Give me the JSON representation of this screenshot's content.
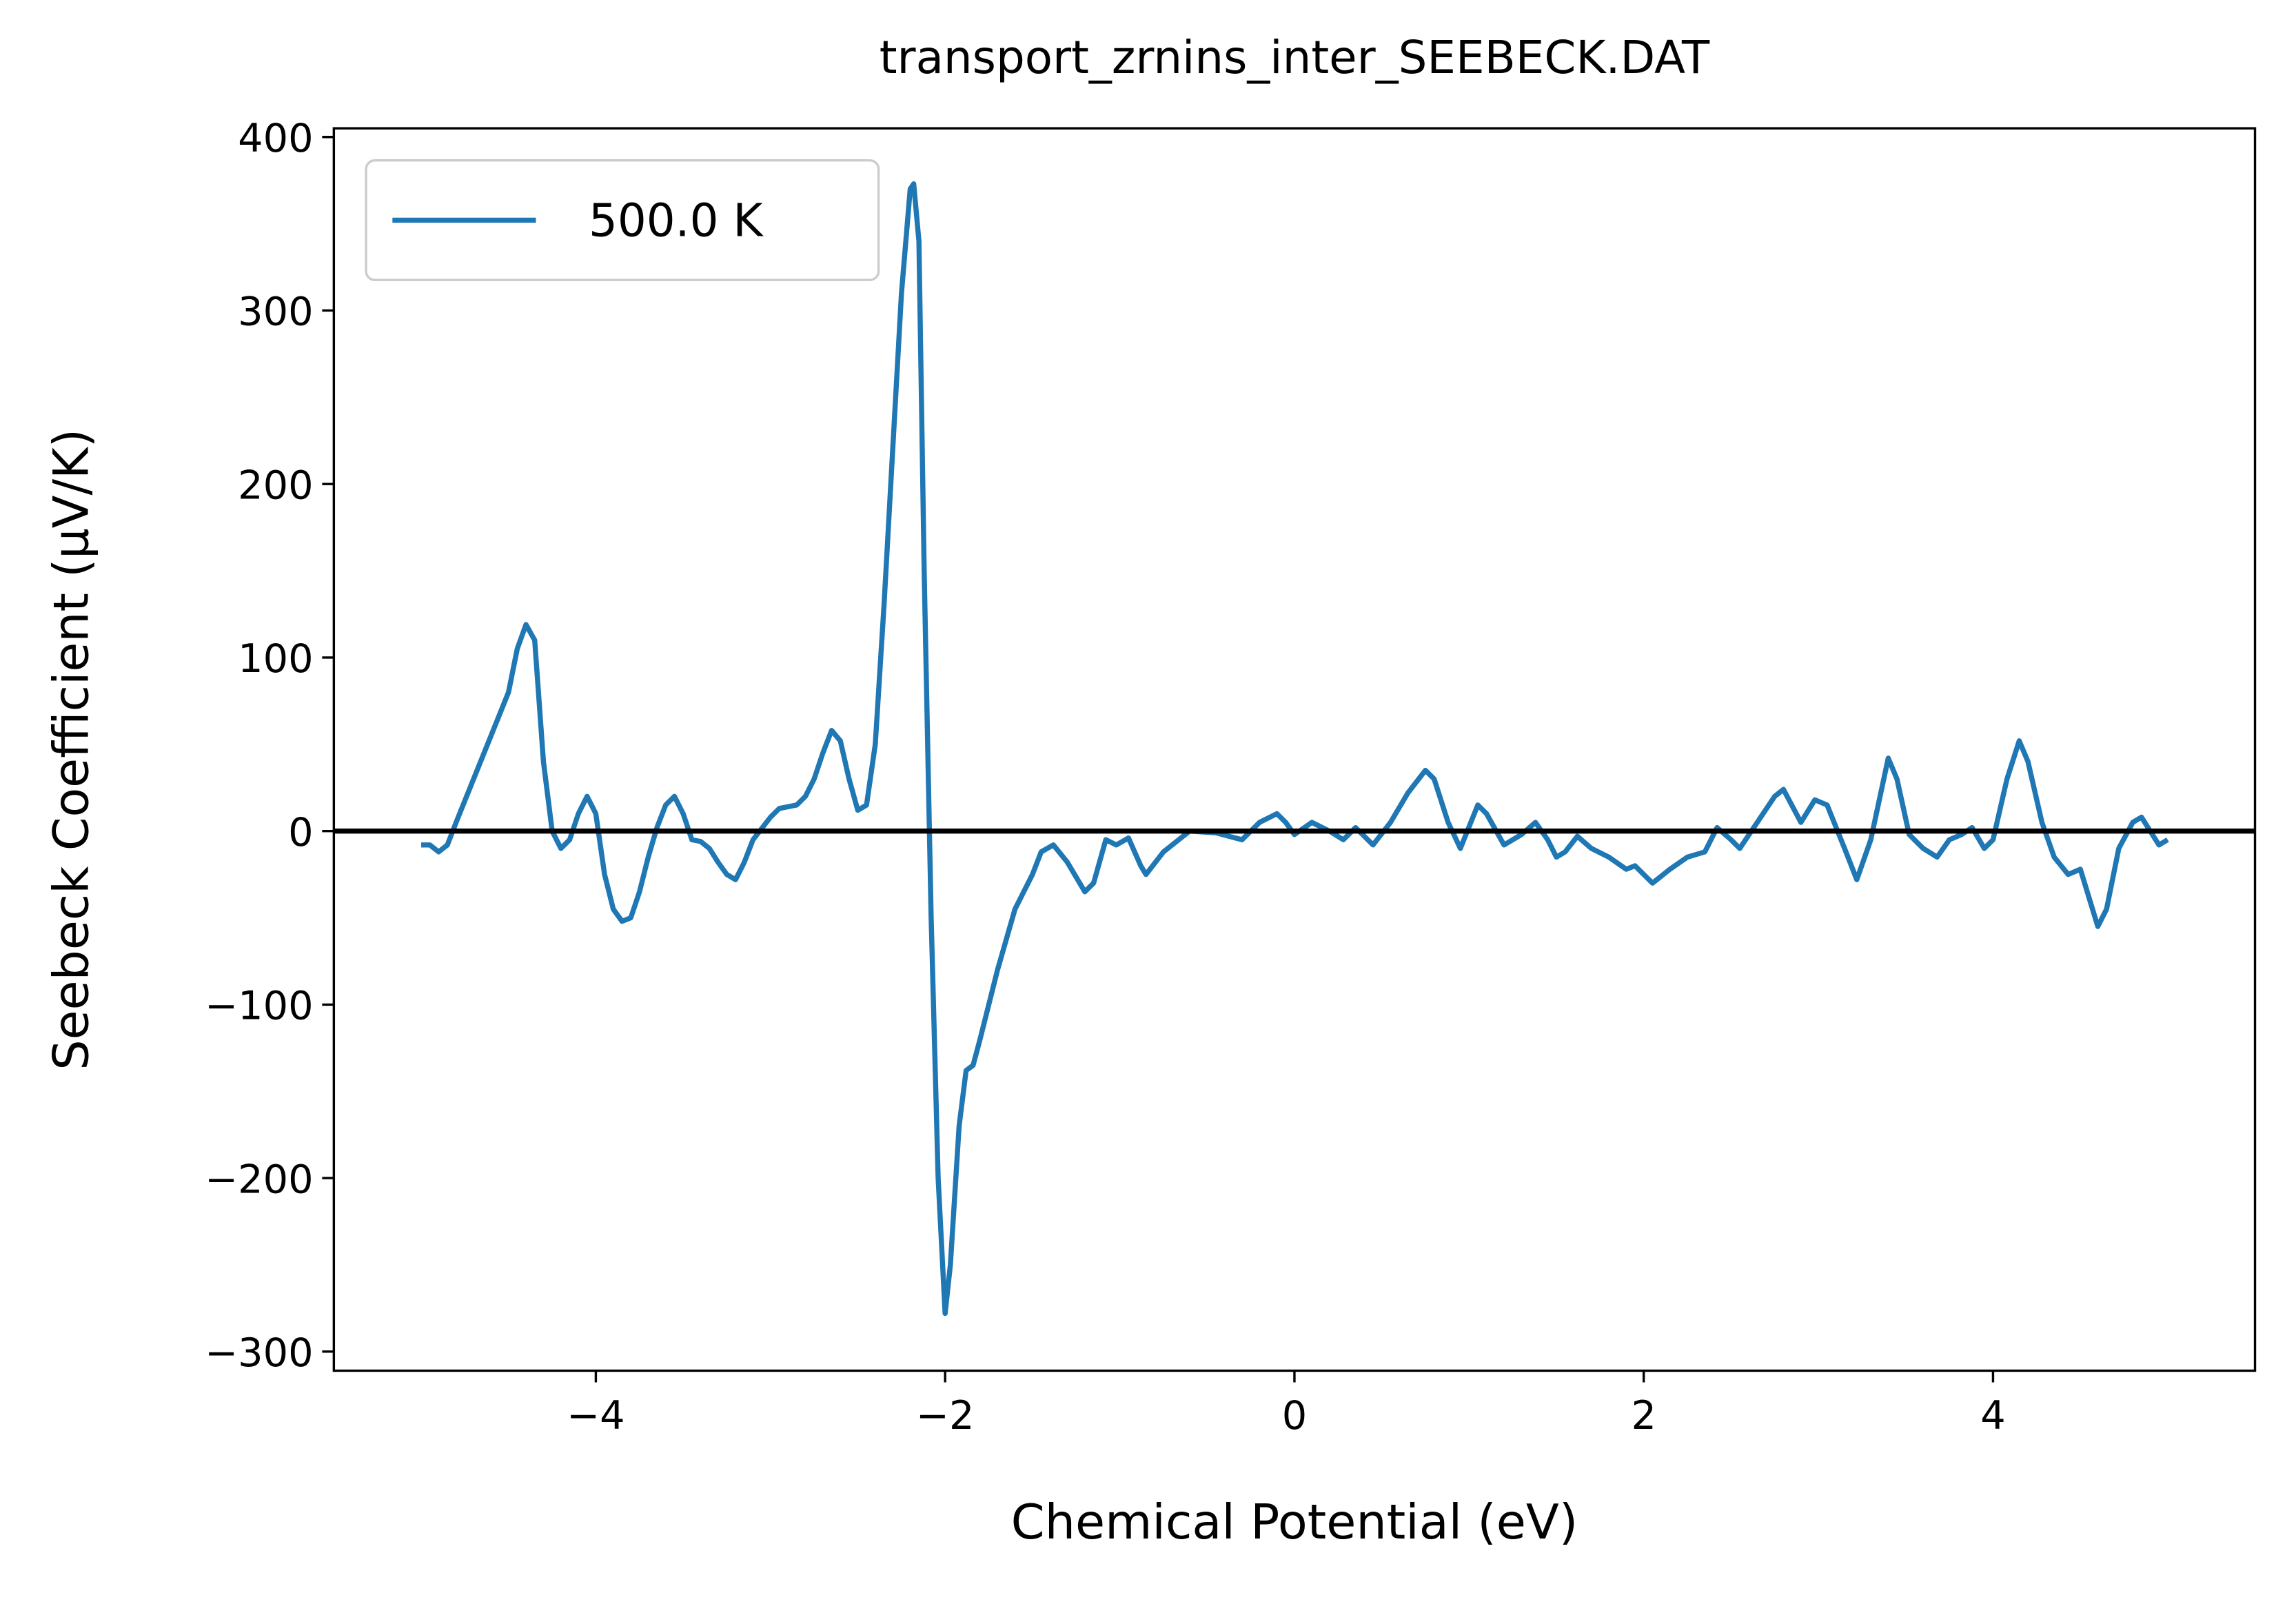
{
  "chart_data": {
    "type": "line",
    "title": "transport_zrnins_inter_SEEBECK.DAT",
    "x_label": "Chemical Potential (eV)",
    "y_label": "Seebeck Coefficient (μV/K)",
    "xlim": [
      -5.5,
      5.5
    ],
    "ylim": [
      -311,
      405
    ],
    "xticks": [
      {
        "value": -4,
        "label": "−4"
      },
      {
        "value": -2,
        "label": "−2"
      },
      0,
      2,
      4
    ],
    "yticks": [
      {
        "value": -300,
        "label": "−300"
      },
      {
        "value": -200,
        "label": "−200"
      },
      {
        "value": -100,
        "label": "−100"
      },
      0,
      100,
      200,
      300,
      400
    ],
    "hline": 0,
    "hline_color": "#000000",
    "legend": "upper left",
    "x": [
      -5.0,
      -4.95,
      -4.9,
      -4.85,
      -4.8,
      -4.7,
      -4.6,
      -4.5,
      -4.45,
      -4.4,
      -4.35,
      -4.3,
      -4.25,
      -4.2,
      -4.15,
      -4.1,
      -4.05,
      -4.0,
      -3.95,
      -3.9,
      -3.85,
      -3.8,
      -3.75,
      -3.7,
      -3.65,
      -3.6,
      -3.55,
      -3.5,
      -3.45,
      -3.4,
      -3.35,
      -3.3,
      -3.25,
      -3.2,
      -3.15,
      -3.1,
      -3.0,
      -2.95,
      -2.9,
      -2.85,
      -2.8,
      -2.75,
      -2.7,
      -2.65,
      -2.6,
      -2.55,
      -2.5,
      -2.45,
      -2.4,
      -2.35,
      -2.3,
      -2.25,
      -2.2,
      -2.18,
      -2.15,
      -2.12,
      -2.08,
      -2.04,
      -2.0,
      -1.97,
      -1.92,
      -1.88,
      -1.84,
      -1.8,
      -1.7,
      -1.6,
      -1.5,
      -1.45,
      -1.38,
      -1.3,
      -1.2,
      -1.15,
      -1.08,
      -1.02,
      -0.95,
      -0.88,
      -0.85,
      -0.75,
      -0.6,
      -0.45,
      -0.3,
      -0.2,
      -0.1,
      -0.05,
      0.0,
      0.1,
      0.2,
      0.28,
      0.35,
      0.45,
      0.55,
      0.65,
      0.75,
      0.8,
      0.88,
      0.95,
      1.05,
      1.1,
      1.2,
      1.3,
      1.38,
      1.45,
      1.5,
      1.55,
      1.62,
      1.7,
      1.8,
      1.9,
      1.95,
      2.05,
      2.15,
      2.25,
      2.35,
      2.42,
      2.5,
      2.55,
      2.65,
      2.75,
      2.8,
      2.9,
      2.98,
      3.05,
      3.15,
      3.22,
      3.3,
      3.4,
      3.45,
      3.52,
      3.6,
      3.68,
      3.75,
      3.82,
      3.88,
      3.95,
      4.0,
      4.08,
      4.15,
      4.2,
      4.28,
      4.35,
      4.43,
      4.5,
      4.6,
      4.65,
      4.72,
      4.8,
      4.85,
      4.9,
      4.95,
      5.0
    ],
    "series": [
      {
        "name": "500.0 K",
        "color": "#1f77b4",
        "values": [
          -8,
          -8,
          -12,
          -8,
          5,
          30,
          55,
          80,
          105,
          119,
          110,
          40,
          0,
          -10,
          -5,
          10,
          20,
          10,
          -25,
          -45,
          -52,
          -50,
          -35,
          -15,
          2,
          15,
          20,
          10,
          -5,
          -6,
          -10,
          -18,
          -25,
          -28,
          -18,
          -5,
          8,
          13,
          14,
          15,
          20,
          30,
          45,
          58,
          52,
          30,
          12,
          15,
          50,
          130,
          220,
          310,
          370,
          373,
          340,
          150,
          -50,
          -200,
          -278,
          -250,
          -170,
          -138,
          -135,
          -120,
          -80,
          -45,
          -25,
          -12,
          -8,
          -18,
          -35,
          -30,
          -5,
          -8,
          -4,
          -20,
          -25,
          -12,
          0,
          -1,
          -5,
          5,
          10,
          5,
          -2,
          5,
          0,
          -5,
          2,
          -8,
          5,
          22,
          35,
          30,
          5,
          -10,
          15,
          10,
          -8,
          -2,
          5,
          -5,
          -15,
          -12,
          -3,
          -10,
          -15,
          -22,
          -20,
          -30,
          -22,
          -15,
          -12,
          2,
          -5,
          -10,
          5,
          20,
          24,
          5,
          18,
          15,
          -10,
          -28,
          -5,
          42,
          30,
          -2,
          -10,
          -15,
          -5,
          -2,
          2,
          -10,
          -5,
          30,
          52,
          40,
          5,
          -15,
          -25,
          -22,
          -55,
          -45,
          -10,
          5,
          8,
          0,
          -8,
          -5
        ]
      }
    ]
  }
}
